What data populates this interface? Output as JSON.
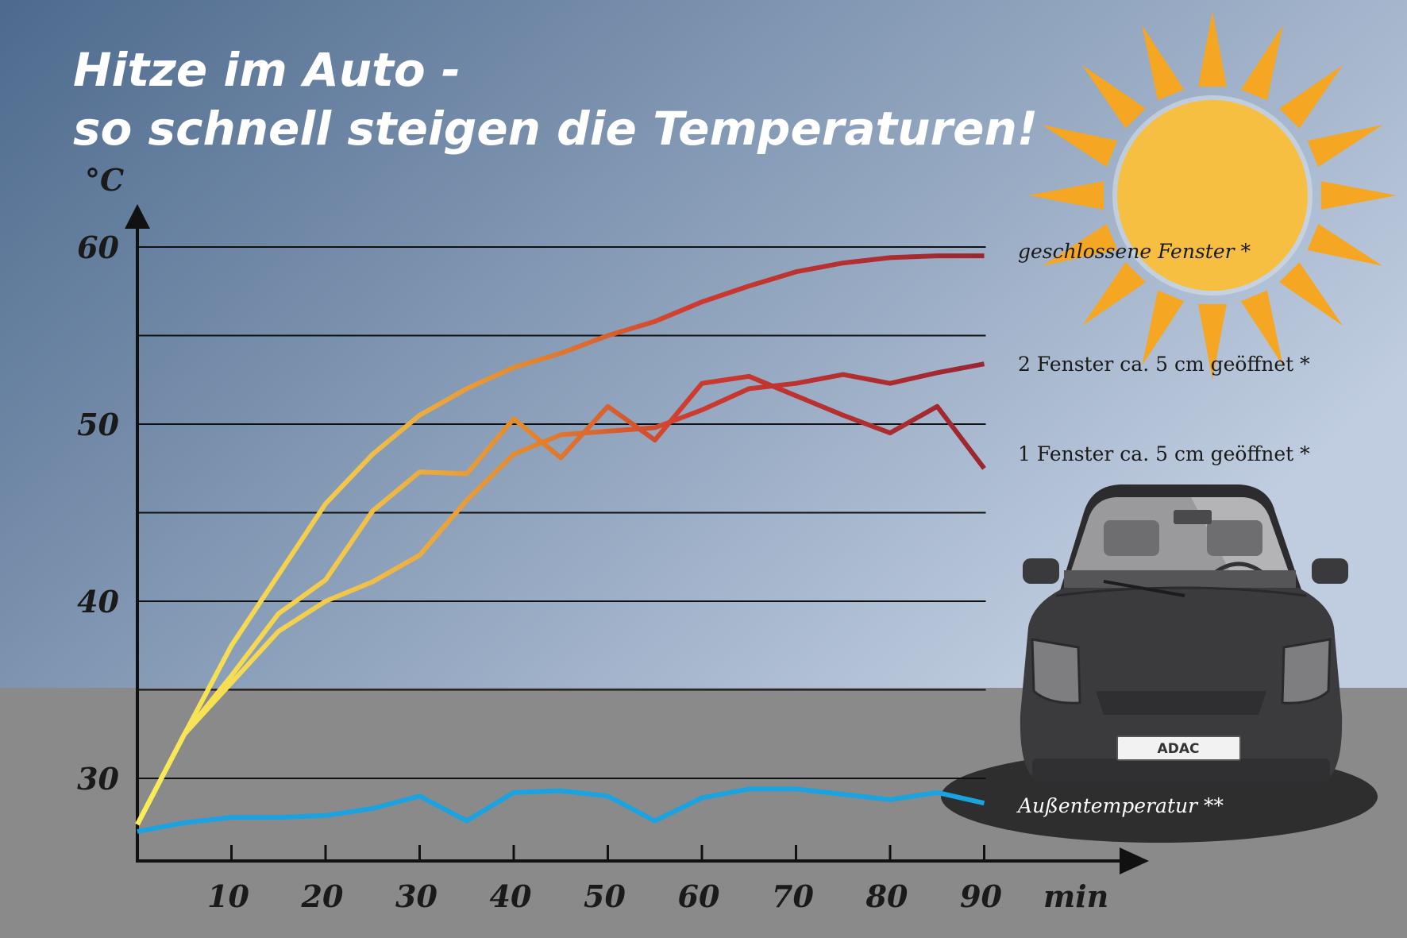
{
  "title_line1": "Hitze im Auto -",
  "title_line2": "so schnell steigen die Temperaturen!",
  "car_plate": "ADAC",
  "colors": {
    "sky_top": "#4d6a8d",
    "sky_bottom": "#c0cde0",
    "ground": "#8a8a8a",
    "sun_core": "#f7bf42",
    "sun_rays": "#f5a623",
    "outside_line": "#1aa3e0",
    "grad_start": "#f9ef5a",
    "grad_mid": "#e48a2e",
    "grad_end": "#9a2530"
  },
  "chart_data": {
    "type": "line",
    "title": "Hitze im Auto - so schnell steigen die Temperaturen!",
    "xlabel": "min",
    "ylabel": "°C",
    "xlim": [
      0,
      90
    ],
    "ylim": [
      25.5,
      60
    ],
    "x_ticks": [
      10,
      20,
      30,
      40,
      50,
      60,
      70,
      80,
      90
    ],
    "x_tick_labels": [
      "10",
      "20",
      "30",
      "40",
      "50",
      "60",
      "70",
      "80",
      "90"
    ],
    "y_ticks": [
      30,
      40,
      50,
      60
    ],
    "y_tick_labels": [
      "30",
      "40",
      "50",
      "60"
    ],
    "y_gridlines": [
      30,
      35,
      40,
      45,
      50,
      55,
      60
    ],
    "series": [
      {
        "name": "geschlossene Fenster *",
        "label_style": "italic",
        "x": [
          0,
          5,
          10,
          15,
          20,
          25,
          30,
          35,
          40,
          45,
          50,
          55,
          60,
          65,
          70,
          75,
          80,
          85,
          90
        ],
        "values": [
          27.4,
          32.5,
          37.5,
          41.5,
          45.5,
          48.3,
          50.5,
          52,
          53.2,
          54,
          55,
          55.8,
          56.9,
          57.8,
          58.6,
          59.1,
          59.4,
          59.5,
          59.5
        ]
      },
      {
        "name": "1 Fenster ca. 5 cm geöffnet *",
        "label_style": "normal",
        "x": [
          0,
          5,
          10,
          15,
          20,
          25,
          30,
          35,
          40,
          45,
          50,
          55,
          60,
          65,
          70,
          75,
          80,
          85,
          90
        ],
        "values": [
          27.4,
          32.5,
          35.8,
          39.3,
          41.2,
          45.1,
          47.3,
          47.2,
          50.3,
          48.1,
          51,
          49.1,
          52.3,
          52.7,
          51.6,
          50.5,
          49.5,
          51,
          47.5
        ]
      },
      {
        "name": "2 Fenster ca. 5 cm geöffnet *",
        "label_style": "normal",
        "x": [
          0,
          5,
          10,
          15,
          20,
          25,
          30,
          35,
          40,
          45,
          50,
          55,
          60,
          65,
          70,
          75,
          80,
          85,
          90
        ],
        "values": [
          27.4,
          32.5,
          35.4,
          38.3,
          40,
          41.1,
          42.6,
          45.7,
          48.3,
          49.4,
          49.6,
          49.8,
          50.8,
          52,
          52.3,
          52.8,
          52.3,
          52.9,
          53.4
        ]
      },
      {
        "name": "Außentemperatur **",
        "label_style": "italic",
        "x": [
          0,
          5,
          10,
          15,
          20,
          25,
          30,
          35,
          40,
          45,
          50,
          55,
          60,
          65,
          70,
          75,
          80,
          85,
          90
        ],
        "values": [
          27,
          27.5,
          27.8,
          27.8,
          27.9,
          28.3,
          29,
          27.6,
          29.2,
          29.3,
          29,
          27.6,
          28.9,
          29.4,
          29.4,
          29.1,
          28.8,
          29.2,
          28.6
        ]
      }
    ]
  }
}
